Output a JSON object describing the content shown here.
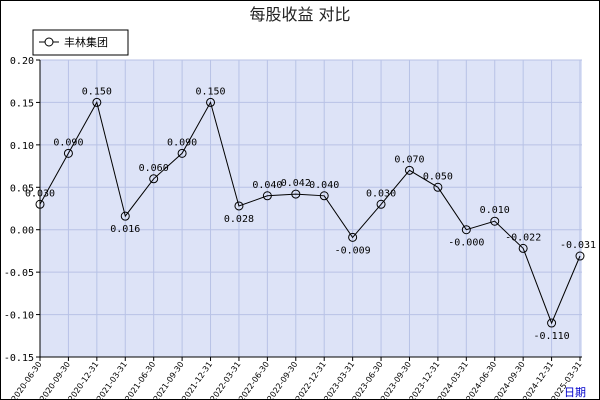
{
  "chart_data": {
    "type": "line",
    "title": "每股收益  对比",
    "xunit": "日期",
    "ylim": [
      -0.15,
      0.2
    ],
    "yticks": [
      "0.20",
      "0.15",
      "0.10",
      "0.05",
      "0.00",
      "-0.05",
      "-0.10",
      "-0.15"
    ],
    "grid": true,
    "legend_position": "top-left",
    "colors": {
      "plot_bg": "#dde3f7",
      "grid": "#b8c2e6",
      "line": "#000000",
      "legend_border": "#000000"
    },
    "x": [
      "2020-06-30",
      "2020-09-30",
      "2020-12-31",
      "2021-03-31",
      "2021-06-30",
      "2021-09-30",
      "2021-12-31",
      "2022-03-31",
      "2022-06-30",
      "2022-09-30",
      "2022-12-31",
      "2023-03-31",
      "2023-06-30",
      "2023-09-30",
      "2023-12-31",
      "2024-03-31",
      "2024-06-30",
      "2024-09-30",
      "2024-12-31",
      "2025-03-31"
    ],
    "series": [
      {
        "name": "丰林集团",
        "values": [
          0.03,
          0.09,
          0.15,
          0.016,
          0.06,
          0.09,
          0.15,
          0.028,
          0.04,
          0.042,
          0.04,
          -0.009,
          0.03,
          0.07,
          0.05,
          -0.0,
          0.01,
          -0.022,
          -0.11,
          -0.031
        ],
        "labels": [
          "0.030",
          "0.090",
          "0.150",
          "0.016",
          "0.060",
          "0.090",
          "0.150",
          "0.028",
          "0.040",
          "0.042",
          "0.040",
          "-0.009",
          "0.030",
          "0.070",
          "0.050",
          "-0.000",
          "0.010",
          "-0.022",
          "-0.110",
          "-0.031"
        ]
      }
    ]
  }
}
